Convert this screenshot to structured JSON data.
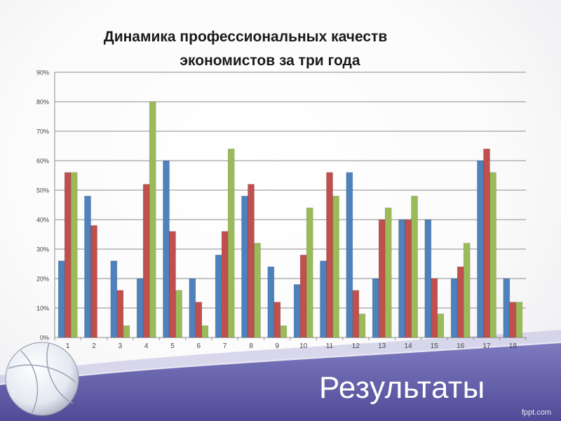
{
  "slide": {
    "title_line1": "Динамика профессиональных качеств",
    "title_line2": "экономистов за три года",
    "results_label": "Результаты",
    "brand": "fppt.com"
  },
  "colors": {
    "series1": "#4f81bd",
    "series2": "#c0504d",
    "series3": "#9bbb59",
    "band": "#5e5aa3"
  },
  "chart_data": {
    "type": "bar",
    "categories": [
      "1",
      "2",
      "3",
      "4",
      "5",
      "6",
      "7",
      "8",
      "9",
      "10",
      "11",
      "12",
      "13",
      "14",
      "15",
      "16",
      "17",
      "18"
    ],
    "series": [
      {
        "values": [
          26,
          48,
          26,
          20,
          60,
          20,
          28,
          48,
          24,
          18,
          26,
          56,
          20,
          40,
          40,
          20,
          60,
          20
        ]
      },
      {
        "values": [
          56,
          38,
          16,
          52,
          36,
          12,
          36,
          52,
          12,
          28,
          56,
          16,
          40,
          40,
          20,
          24,
          64,
          12
        ]
      },
      {
        "values": [
          56,
          0,
          4,
          80,
          16,
          4,
          64,
          32,
          4,
          44,
          48,
          8,
          44,
          48,
          8,
          32,
          56,
          12
        ]
      }
    ],
    "y_ticks": [
      "0%",
      "10%",
      "20%",
      "30%",
      "40%",
      "50%",
      "60%",
      "70%",
      "80%",
      "90%"
    ],
    "ylim": [
      0,
      90
    ],
    "grid": true,
    "legend": "none"
  }
}
